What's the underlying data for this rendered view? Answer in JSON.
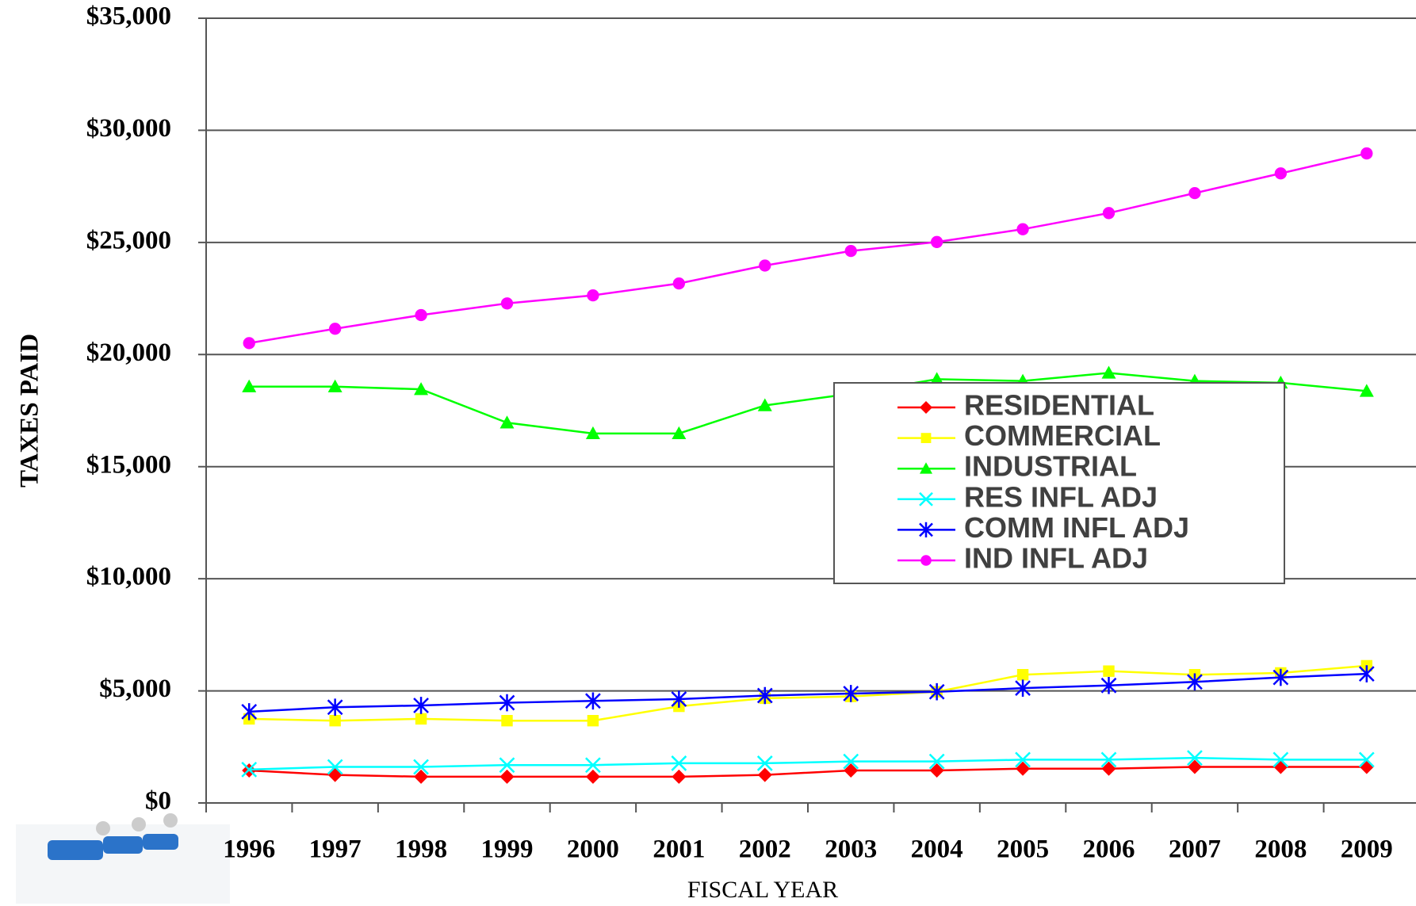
{
  "chart_data": {
    "type": "line",
    "y_label": "TAXES PAID",
    "x_label": "FISCAL YEAR",
    "categories": [
      "1996",
      "1997",
      "1998",
      "1999",
      "2000",
      "2001",
      "2002",
      "2003",
      "2004",
      "2005",
      "2006",
      "2007",
      "2008",
      "2009"
    ],
    "ylim": [
      0,
      35000
    ],
    "yticks": [
      {
        "value": 0,
        "label": "$0"
      },
      {
        "value": 5000,
        "label": "$5,000"
      },
      {
        "value": 10000,
        "label": "$10,000"
      },
      {
        "value": 15000,
        "label": "$15,000"
      },
      {
        "value": 20000,
        "label": "$20,000"
      },
      {
        "value": 25000,
        "label": "$25,000"
      },
      {
        "value": 30000,
        "label": "$30,000"
      },
      {
        "value": 35000,
        "label": "$35,000"
      }
    ],
    "grid": true,
    "legend": "center-right",
    "series": [
      {
        "name": "RESIDENTIAL",
        "color": "#ff0000",
        "marker": "diamond",
        "values": [
          1450,
          1250,
          1170,
          1170,
          1170,
          1170,
          1250,
          1450,
          1450,
          1530,
          1530,
          1610,
          1610,
          1610
        ]
      },
      {
        "name": "COMMERCIAL",
        "color": "#ffff00",
        "marker": "square",
        "values": [
          3750,
          3670,
          3750,
          3670,
          3670,
          4310,
          4670,
          4750,
          4960,
          5720,
          5880,
          5720,
          5800,
          6120
        ]
      },
      {
        "name": "INDUSTRIAL",
        "color": "#00ff00",
        "marker": "triangle",
        "values": [
          18570,
          18570,
          18450,
          16960,
          16480,
          16480,
          17730,
          18250,
          18900,
          18820,
          19180,
          18820,
          18740,
          18370
        ]
      },
      {
        "name": "RES INFL ADJ",
        "color": "#00ffff",
        "marker": "x",
        "values": [
          1490,
          1610,
          1610,
          1690,
          1690,
          1770,
          1770,
          1850,
          1850,
          1930,
          1930,
          2010,
          1930,
          1930
        ]
      },
      {
        "name": "COMM INFL ADJ",
        "color": "#0000ff",
        "marker": "asterisk",
        "values": [
          4070,
          4270,
          4350,
          4470,
          4550,
          4630,
          4790,
          4880,
          4960,
          5120,
          5240,
          5400,
          5600,
          5760
        ]
      },
      {
        "name": "IND INFL ADJ",
        "color": "#ff00ff",
        "marker": "circle",
        "values": [
          20510,
          21150,
          21760,
          22280,
          22640,
          23170,
          23970,
          24620,
          25020,
          25590,
          26310,
          27200,
          28080,
          28970
        ]
      }
    ]
  }
}
